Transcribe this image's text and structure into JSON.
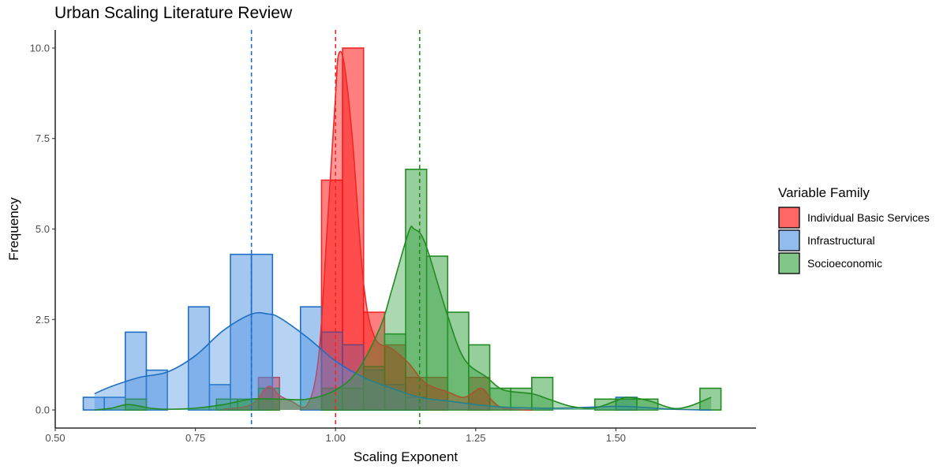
{
  "chart_data": {
    "type": "histogram",
    "title": "Urban Scaling Literature Review",
    "xlabel": "Scaling Exponent",
    "ylabel": "Frequency",
    "xlim": [
      0.5,
      1.75
    ],
    "ylim": [
      -0.5,
      10.5
    ],
    "x_ticks": [
      0.5,
      0.75,
      1.0,
      1.25,
      1.5
    ],
    "x_tick_labels": [
      "0.50",
      "0.75",
      "1.00",
      "1.25",
      "1.50"
    ],
    "y_ticks": [
      0,
      2.5,
      5,
      7.5,
      10
    ],
    "y_tick_labels": [
      "0.0",
      "2.5",
      "5.0",
      "7.5",
      "10.0"
    ],
    "grid": false,
    "legend": {
      "title": "Variable Family",
      "position": "right",
      "entries": [
        "Individual Basic Services",
        "Infrastructural",
        "Socioeconomic"
      ]
    },
    "bin_width": 0.0375,
    "series": [
      {
        "name": "Individual Basic Services",
        "color": "#F8766D",
        "fill": "#FF0000",
        "line": "#F02828",
        "mean": 1.0,
        "bins": [
          {
            "x0": 0.8625,
            "x1": 0.9,
            "count": 0.9
          },
          {
            "x0": 0.975,
            "x1": 1.0125,
            "count": 6.35
          },
          {
            "x0": 1.0125,
            "x1": 1.05,
            "count": 10.0
          },
          {
            "x0": 1.05,
            "x1": 1.0875,
            "count": 2.7
          },
          {
            "x0": 1.0875,
            "x1": 1.125,
            "count": 1.8
          },
          {
            "x0": 1.125,
            "x1": 1.1625,
            "count": 0.9
          },
          {
            "x0": 1.1625,
            "x1": 1.2,
            "count": 0.9
          },
          {
            "x0": 1.2375,
            "x1": 1.275,
            "count": 0.9
          }
        ],
        "density": [
          [
            0.8,
            0.02
          ],
          [
            0.85,
            0.15
          ],
          [
            0.88,
            0.65
          ],
          [
            0.9,
            0.4
          ],
          [
            0.92,
            0.25
          ],
          [
            0.95,
            0.15
          ],
          [
            0.97,
            1.5
          ],
          [
            0.985,
            5.0
          ],
          [
            1.0,
            8.7
          ],
          [
            1.005,
            9.8
          ],
          [
            1.015,
            9.6
          ],
          [
            1.03,
            7.5
          ],
          [
            1.05,
            3.5
          ],
          [
            1.07,
            2.0
          ],
          [
            1.1,
            1.7
          ],
          [
            1.13,
            1.3
          ],
          [
            1.16,
            0.75
          ],
          [
            1.2,
            0.5
          ],
          [
            1.23,
            0.35
          ],
          [
            1.26,
            0.6
          ],
          [
            1.28,
            0.25
          ],
          [
            1.3,
            0.05
          ],
          [
            1.35,
            0.0
          ]
        ]
      },
      {
        "name": "Infrastructural",
        "color": "#619CFF",
        "fill": "#4A90E2",
        "line": "#1F6FC4",
        "mean": 0.85,
        "bins": [
          {
            "x0": 0.55,
            "x1": 0.5875,
            "count": 0.35
          },
          {
            "x0": 0.5875,
            "x1": 0.625,
            "count": 0.35
          },
          {
            "x0": 0.625,
            "x1": 0.6625,
            "count": 2.15
          },
          {
            "x0": 0.6625,
            "x1": 0.7,
            "count": 1.1
          },
          {
            "x0": 0.7375,
            "x1": 0.775,
            "count": 2.85
          },
          {
            "x0": 0.775,
            "x1": 0.8125,
            "count": 0.7
          },
          {
            "x0": 0.8125,
            "x1": 0.85,
            "count": 4.3
          },
          {
            "x0": 0.85,
            "x1": 0.8875,
            "count": 4.3
          },
          {
            "x0": 0.9375,
            "x1": 0.975,
            "count": 2.85
          },
          {
            "x0": 0.975,
            "x1": 1.0125,
            "count": 2.15
          },
          {
            "x0": 1.0125,
            "x1": 1.05,
            "count": 1.8
          },
          {
            "x0": 1.05,
            "x1": 1.0875,
            "count": 1.1
          },
          {
            "x0": 1.0875,
            "x1": 1.125,
            "count": 0.7
          },
          {
            "x0": 1.125,
            "x1": 1.1625,
            "count": 0.35
          },
          {
            "x0": 1.5,
            "x1": 1.5375,
            "count": 0.35
          }
        ],
        "density": [
          [
            0.57,
            0.45
          ],
          [
            0.6,
            0.65
          ],
          [
            0.65,
            0.9
          ],
          [
            0.7,
            1.05
          ],
          [
            0.75,
            1.5
          ],
          [
            0.8,
            2.2
          ],
          [
            0.85,
            2.65
          ],
          [
            0.88,
            2.65
          ],
          [
            0.9,
            2.55
          ],
          [
            0.95,
            2.0
          ],
          [
            1.0,
            1.35
          ],
          [
            1.05,
            0.9
          ],
          [
            1.1,
            0.6
          ],
          [
            1.15,
            0.35
          ],
          [
            1.2,
            0.25
          ],
          [
            1.25,
            0.15
          ],
          [
            1.3,
            0.08
          ],
          [
            1.4,
            0.05
          ],
          [
            1.5,
            0.1
          ],
          [
            1.55,
            0.07
          ],
          [
            1.6,
            0.02
          ],
          [
            1.67,
            0.0
          ]
        ]
      },
      {
        "name": "Socioeconomic",
        "color": "#00BA38",
        "fill": "#2E9E3A",
        "line": "#228B22",
        "mean": 1.15,
        "bins": [
          {
            "x0": 0.625,
            "x1": 0.6625,
            "count": 0.3
          },
          {
            "x0": 0.7875,
            "x1": 0.825,
            "count": 0.3
          },
          {
            "x0": 0.825,
            "x1": 0.8625,
            "count": 0.3
          },
          {
            "x0": 0.8625,
            "x1": 0.9,
            "count": 0.6
          },
          {
            "x0": 0.975,
            "x1": 1.0125,
            "count": 0.6
          },
          {
            "x0": 1.0125,
            "x1": 1.05,
            "count": 0.6
          },
          {
            "x0": 1.05,
            "x1": 1.0875,
            "count": 1.2
          },
          {
            "x0": 1.0875,
            "x1": 1.125,
            "count": 2.1
          },
          {
            "x0": 1.125,
            "x1": 1.1625,
            "count": 6.65
          },
          {
            "x0": 1.1625,
            "x1": 1.2,
            "count": 4.25
          },
          {
            "x0": 1.2,
            "x1": 1.2375,
            "count": 2.7
          },
          {
            "x0": 1.2375,
            "x1": 1.275,
            "count": 1.8
          },
          {
            "x0": 1.275,
            "x1": 1.3125,
            "count": 0.6
          },
          {
            "x0": 1.3125,
            "x1": 1.35,
            "count": 0.6
          },
          {
            "x0": 1.35,
            "x1": 1.3875,
            "count": 0.9
          },
          {
            "x0": 1.4625,
            "x1": 1.5,
            "count": 0.3
          },
          {
            "x0": 1.5,
            "x1": 1.5375,
            "count": 0.3
          },
          {
            "x0": 1.5375,
            "x1": 1.575,
            "count": 0.3
          },
          {
            "x0": 1.65,
            "x1": 1.6875,
            "count": 0.6
          }
        ],
        "density": [
          [
            0.57,
            0.0
          ],
          [
            0.6,
            0.05
          ],
          [
            0.63,
            0.15
          ],
          [
            0.67,
            0.05
          ],
          [
            0.7,
            0.02
          ],
          [
            0.75,
            0.05
          ],
          [
            0.8,
            0.15
          ],
          [
            0.85,
            0.3
          ],
          [
            0.9,
            0.3
          ],
          [
            0.95,
            0.3
          ],
          [
            1.0,
            0.55
          ],
          [
            1.04,
            1.1
          ],
          [
            1.08,
            2.3
          ],
          [
            1.1,
            3.3
          ],
          [
            1.13,
            4.9
          ],
          [
            1.14,
            5.0
          ],
          [
            1.16,
            4.6
          ],
          [
            1.2,
            2.6
          ],
          [
            1.23,
            1.4
          ],
          [
            1.27,
            0.9
          ],
          [
            1.3,
            0.55
          ],
          [
            1.35,
            0.45
          ],
          [
            1.38,
            0.3
          ],
          [
            1.42,
            0.1
          ],
          [
            1.46,
            0.05
          ],
          [
            1.5,
            0.25
          ],
          [
            1.52,
            0.35
          ],
          [
            1.56,
            0.25
          ],
          [
            1.6,
            0.05
          ],
          [
            1.63,
            0.1
          ],
          [
            1.67,
            0.35
          ]
        ]
      }
    ]
  }
}
